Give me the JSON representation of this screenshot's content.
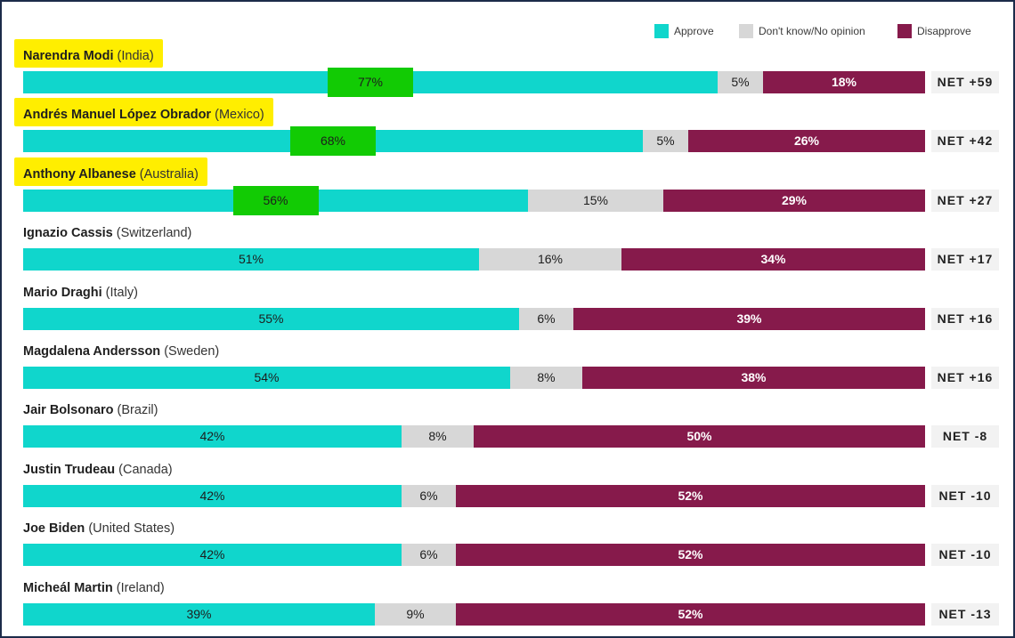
{
  "colors": {
    "approve": "#10d6cc",
    "dont_know": "#d7d7d7",
    "disapprove": "#861a4b",
    "name_highlight": "#ffee00",
    "value_highlight": "#12cb04"
  },
  "legend": [
    {
      "label": "Approve",
      "color": "#10d6cc"
    },
    {
      "label": "Don't know/No opinion",
      "color": "#d7d7d7"
    },
    {
      "label": "Disapprove",
      "color": "#861a4b"
    }
  ],
  "chart_data": {
    "type": "bar",
    "orientation": "horizontal",
    "stacked": true,
    "normalized": true,
    "legend_position": "top-right",
    "grid": false,
    "categories": [
      "Narendra Modi (India)",
      "Andrés Manuel López Obrador (Mexico)",
      "Anthony Albanese (Australia)",
      "Ignazio Cassis (Switzerland)",
      "Mario Draghi (Italy)",
      "Magdalena Andersson (Sweden)",
      "Jair Bolsonaro (Brazil)",
      "Justin Trudeau (Canada)",
      "Joe Biden (United States)",
      "Micheál Martin (Ireland)"
    ],
    "series": [
      {
        "name": "Approve",
        "values": [
          77,
          68,
          56,
          51,
          55,
          54,
          42,
          42,
          42,
          39
        ]
      },
      {
        "name": "Don't know/No opinion",
        "values": [
          5,
          5,
          15,
          16,
          6,
          8,
          8,
          6,
          6,
          9
        ]
      },
      {
        "name": "Disapprove",
        "values": [
          18,
          26,
          29,
          34,
          39,
          38,
          50,
          52,
          52,
          52
        ]
      }
    ],
    "rows": [
      {
        "name": "Narendra Modi",
        "country": "(India)",
        "approve": 77,
        "dont_know": 5,
        "disapprove": 18,
        "approve_label": "77%",
        "dont_know_label": "5%",
        "disapprove_label": "18%",
        "net_label": "NET +59",
        "highlighted": true
      },
      {
        "name": "Andrés Manuel López Obrador",
        "country": "(Mexico)",
        "approve": 68,
        "dont_know": 5,
        "disapprove": 26,
        "approve_label": "68%",
        "dont_know_label": "5%",
        "disapprove_label": "26%",
        "net_label": "NET +42",
        "highlighted": true
      },
      {
        "name": "Anthony Albanese",
        "country": "(Australia)",
        "approve": 56,
        "dont_know": 15,
        "disapprove": 29,
        "approve_label": "56%",
        "dont_know_label": "15%",
        "disapprove_label": "29%",
        "net_label": "NET +27",
        "highlighted": true
      },
      {
        "name": "Ignazio Cassis",
        "country": "(Switzerland)",
        "approve": 51,
        "dont_know": 16,
        "disapprove": 34,
        "approve_label": "51%",
        "dont_know_label": "16%",
        "disapprove_label": "34%",
        "net_label": "NET +17",
        "highlighted": false
      },
      {
        "name": "Mario Draghi",
        "country": "(Italy)",
        "approve": 55,
        "dont_know": 6,
        "disapprove": 39,
        "approve_label": "55%",
        "dont_know_label": "6%",
        "disapprove_label": "39%",
        "net_label": "NET +16",
        "highlighted": false
      },
      {
        "name": "Magdalena Andersson",
        "country": "(Sweden)",
        "approve": 54,
        "dont_know": 8,
        "disapprove": 38,
        "approve_label": "54%",
        "dont_know_label": "8%",
        "disapprove_label": "38%",
        "net_label": "NET +16",
        "highlighted": false
      },
      {
        "name": "Jair Bolsonaro",
        "country": "(Brazil)",
        "approve": 42,
        "dont_know": 8,
        "disapprove": 50,
        "approve_label": "42%",
        "dont_know_label": "8%",
        "disapprove_label": "50%",
        "net_label": "NET -8",
        "highlighted": false
      },
      {
        "name": "Justin Trudeau",
        "country": "(Canada)",
        "approve": 42,
        "dont_know": 6,
        "disapprove": 52,
        "approve_label": "42%",
        "dont_know_label": "6%",
        "disapprove_label": "52%",
        "net_label": "NET -10",
        "highlighted": false
      },
      {
        "name": "Joe Biden",
        "country": "(United States)",
        "approve": 42,
        "dont_know": 6,
        "disapprove": 52,
        "approve_label": "42%",
        "dont_know_label": "6%",
        "disapprove_label": "52%",
        "net_label": "NET -10",
        "highlighted": false
      },
      {
        "name": "Micheál Martin",
        "country": "(Ireland)",
        "approve": 39,
        "dont_know": 9,
        "disapprove": 52,
        "approve_label": "39%",
        "dont_know_label": "9%",
        "disapprove_label": "52%",
        "net_label": "NET -13",
        "highlighted": false
      }
    ]
  }
}
